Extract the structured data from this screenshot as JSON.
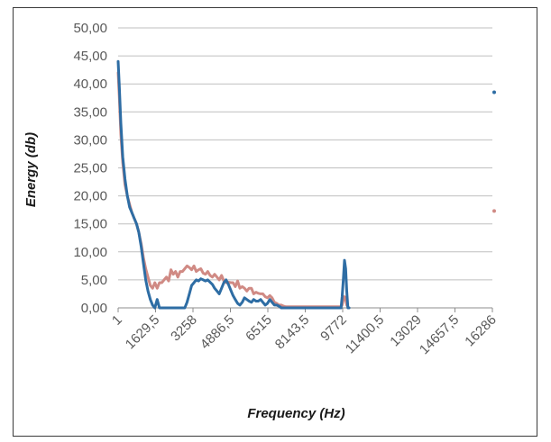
{
  "chart_data": {
    "type": "line",
    "title": "",
    "xlabel": "Frequency (Hz)",
    "ylabel": "Energy (db)",
    "ylim": [
      0,
      50
    ],
    "yticks": [
      "0,00",
      "5,00",
      "10,00",
      "15,00",
      "20,00",
      "25,00",
      "30,00",
      "35,00",
      "40,00",
      "45,00",
      "50,00"
    ],
    "xticks": [
      "1",
      "1629,5",
      "3258",
      "4886,5",
      "6515",
      "8143,5",
      "9772",
      "11400,5",
      "13029",
      "14657,5",
      "16286"
    ],
    "xlim": [
      1,
      16286
    ],
    "grid": "horizontal",
    "legend": "none",
    "series": [
      {
        "color": "#2e6da4",
        "x": [
          1,
          50,
          120,
          200,
          300,
          400,
          500,
          600,
          700,
          800,
          900,
          1000,
          1100,
          1200,
          1300,
          1400,
          1500,
          1600,
          1700,
          1800,
          1900,
          2000,
          2100,
          2200,
          2300,
          2400,
          2500,
          2600,
          2700,
          2800,
          2900,
          3000,
          3100,
          3200,
          3300,
          3400,
          3500,
          3600,
          3700,
          3800,
          3900,
          4000,
          4100,
          4200,
          4300,
          4400,
          4500,
          4600,
          4700,
          4800,
          4900,
          5000,
          5100,
          5200,
          5300,
          5400,
          5500,
          5600,
          5700,
          5800,
          5900,
          6000,
          6100,
          6200,
          6300,
          6400,
          6500,
          6600,
          6700,
          6800,
          6900,
          7000,
          7100,
          7200,
          7300,
          7400,
          7500,
          7600,
          7700,
          7800,
          7900,
          8000,
          8100,
          8200,
          8300,
          8400,
          8500,
          8600,
          8700,
          8800,
          8900,
          9000,
          9100,
          9200,
          9300,
          9400,
          9500,
          9600,
          9700,
          9750,
          9800,
          9850,
          9900,
          9950,
          10000,
          10050
        ],
        "y": [
          44,
          40,
          33,
          27,
          23,
          20,
          18,
          17,
          16,
          15,
          13.5,
          11,
          8,
          5,
          3,
          1.5,
          0.5,
          0,
          1.5,
          0,
          0,
          0,
          0,
          0,
          0,
          0,
          0,
          0,
          0,
          0,
          0,
          1,
          2.5,
          4,
          4.5,
          5,
          4.8,
          5.2,
          5,
          4.8,
          5,
          4.6,
          4.2,
          3.5,
          3,
          2.5,
          3.5,
          4.5,
          5,
          4.2,
          3.2,
          2.2,
          1.5,
          0.8,
          0.5,
          1,
          1.8,
          1.5,
          1.2,
          1,
          1.5,
          1.2,
          1.2,
          1.5,
          1,
          0.5,
          0.8,
          1.5,
          1,
          0.5,
          0.5,
          0.3,
          0,
          0,
          0,
          0,
          0,
          0,
          0,
          0,
          0,
          0,
          0,
          0,
          0,
          0,
          0,
          0,
          0,
          0,
          0,
          0,
          0,
          0,
          0,
          0,
          0,
          0,
          0,
          2,
          5,
          8.5,
          7,
          3,
          0,
          0
        ]
      },
      {
        "color": "#d08a84",
        "x": [
          1,
          50,
          120,
          200,
          300,
          400,
          500,
          600,
          700,
          800,
          900,
          1000,
          1100,
          1200,
          1300,
          1400,
          1500,
          1600,
          1700,
          1800,
          1900,
          2000,
          2100,
          2200,
          2300,
          2400,
          2500,
          2600,
          2700,
          2800,
          2900,
          3000,
          3100,
          3200,
          3300,
          3400,
          3500,
          3600,
          3700,
          3800,
          3900,
          4000,
          4100,
          4200,
          4300,
          4400,
          4500,
          4600,
          4700,
          4800,
          4900,
          5000,
          5100,
          5200,
          5300,
          5400,
          5500,
          5600,
          5700,
          5800,
          5900,
          6000,
          6100,
          6200,
          6300,
          6400,
          6500,
          6600,
          6700,
          6800,
          6900,
          7000,
          7100,
          7200,
          7300,
          7400,
          7500,
          7600,
          7700,
          7800,
          7900,
          8000,
          8100,
          8200,
          8300,
          8400,
          8500,
          8600,
          8700,
          8800,
          8900,
          9000,
          9100,
          9200,
          9300,
          9400,
          9500,
          9600,
          9700,
          9750,
          9800,
          9850,
          9900,
          9950,
          10000
        ],
        "y": [
          42,
          38,
          31,
          26,
          22,
          20,
          18.5,
          17,
          16,
          15,
          13.5,
          11.5,
          9,
          7,
          5.5,
          4,
          3.5,
          4.5,
          3.5,
          4.5,
          4.5,
          5,
          5.5,
          4.8,
          6.8,
          6,
          6.5,
          5.5,
          6.5,
          6.5,
          7,
          7.5,
          7.2,
          6.8,
          7.5,
          6.5,
          6.8,
          7,
          6.2,
          6,
          6.5,
          5.8,
          5.5,
          6,
          5.5,
          5,
          5.8,
          4.8,
          4.5,
          4.6,
          4.5,
          4.5,
          3.8,
          4.8,
          3.5,
          3.8,
          3.5,
          3,
          3.5,
          3.5,
          2.5,
          2.8,
          2.6,
          2.5,
          2.5,
          2,
          1.8,
          2.2,
          1.8,
          1,
          0.8,
          0.5,
          0.5,
          0.3,
          0.2,
          0.2,
          0.2,
          0.2,
          0.2,
          0.2,
          0.2,
          0.2,
          0.2,
          0.2,
          0.2,
          0.2,
          0.2,
          0.2,
          0.2,
          0.2,
          0.2,
          0.2,
          0.2,
          0.2,
          0.2,
          0.2,
          0.2,
          0.2,
          0.2,
          0.5,
          1.5,
          2,
          1.5,
          0.5,
          0.2
        ]
      }
    ],
    "overflow_markers": [
      {
        "color": "#2e6da4",
        "y": 38.5
      },
      {
        "color": "#d08a84",
        "y": 17.3
      }
    ]
  }
}
